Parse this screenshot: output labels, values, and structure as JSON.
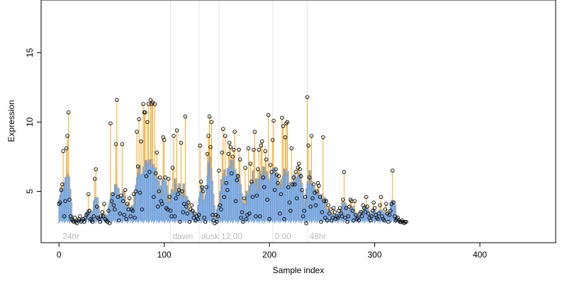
{
  "chart_data": {
    "type": "line",
    "title": "",
    "xlabel": "Sample index",
    "ylabel": "Expression",
    "xlim": [
      -17,
      472
    ],
    "ylim": [
      1.3,
      18.8
    ],
    "x_ticks": [
      0,
      100,
      200,
      300,
      400
    ],
    "y_ticks": [
      5,
      10,
      15
    ],
    "grid": false,
    "legend": "none",
    "phase_lines": [
      {
        "x": 106,
        "label": "dawn"
      },
      {
        "x": 133,
        "label": "dusk"
      },
      {
        "x": 152,
        "label": "12:00"
      },
      {
        "x": 203,
        "label": "0:00"
      },
      {
        "x": 236,
        "label": "48hr"
      }
    ],
    "corner_label": {
      "x": 2,
      "label": "24hr"
    },
    "colors": {
      "stems": "#f5a623",
      "blue_series": "#6f9fdb",
      "grey_series": "#a8a8a8",
      "points": "#000000",
      "phase_lines": "#e6e6e6",
      "phase_text": "#bdbdbd"
    },
    "series": [
      {
        "values": [
          4.1,
          4.2,
          5.1,
          5.5,
          7.9,
          3.2,
          4.3,
          8.1,
          9.0,
          10.7,
          4.4,
          3.2,
          3.0,
          2.9,
          2.8,
          3.1,
          2.8,
          2.7,
          2.9,
          3.0,
          3.2,
          2.8,
          2.9,
          3.0,
          2.8,
          3.1,
          3.3,
          3.4,
          4.8,
          3.6,
          3.0,
          2.9,
          2.8,
          3.2,
          5.9,
          6.6,
          3.9,
          3.1,
          3.0,
          2.8,
          3.2,
          3.5,
          3.2,
          4.1,
          3.0,
          2.9,
          2.8,
          3.6,
          2.7,
          9.9,
          4.3,
          4.8,
          4.0,
          3.7,
          8.4,
          11.6,
          4.6,
          2.9,
          3.4,
          4.7,
          8.4,
          4.3,
          3.3,
          5.1,
          3.0,
          4.1,
          3.7,
          4.5,
          3.2,
          3.7,
          3.6,
          4.8,
          3.1,
          5.0,
          9.3,
          6.8,
          10.2,
          4.9,
          8.6,
          3.7,
          11.3,
          10.7,
          10.7,
          6.1,
          10.0,
          11.3,
          6.4,
          11.6,
          11.3,
          11.4,
          4.6,
          11.3,
          6.3,
          7.8,
          3.9,
          5.0,
          6.0,
          4.3,
          4.1,
          8.9,
          8.7,
          6.0,
          3.8,
          3.7,
          5.9,
          4.6,
          3.6,
          3.2,
          6.7,
          9.0,
          3.2,
          4.5,
          9.4,
          4.8,
          5.1,
          2.8,
          8.5,
          5.0,
          3.5,
          4.1,
          10.4,
          3.9,
          3.4,
          4.2,
          2.8,
          3.7,
          4.0,
          3.6,
          3.1,
          3.4,
          2.9,
          3.2,
          3.0,
          3.3,
          8.3,
          5.7,
          5.3,
          5.0,
          3.1,
          2.8,
          5.3,
          7.7,
          9.0,
          10.4,
          8.2,
          10.0,
          3.3,
          2.9,
          2.7,
          3.3,
          2.8,
          3.2,
          6.5,
          4.0,
          3.7,
          7.8,
          9.5,
          4.6,
          9.0,
          5.6,
          5.1,
          7.7,
          8.5,
          8.2,
          6.3,
          7.5,
          8.0,
          9.3,
          4.3,
          5.8,
          6.1,
          8.0,
          7.3,
          3.1,
          3.5,
          2.8,
          4.5,
          6.7,
          3.0,
          3.3,
          8.1,
          3.4,
          7.0,
          5.7,
          4.6,
          8.0,
          9.3,
          3.2,
          4.7,
          6.6,
          8.0,
          3.2,
          8.3,
          8.6,
          6.0,
          5.3,
          7.9,
          7.3,
          4.4,
          10.5,
          3.0,
          6.9,
          6.4,
          8.7,
          10.1,
          5.1,
          6.6,
          6.2,
          5.6,
          6.1,
          3.4,
          4.8,
          10.3,
          9.7,
          3.0,
          8.9,
          9.9,
          10.0,
          5.3,
          4.2,
          3.6,
          8.1,
          5.5,
          6.0,
          5.5,
          6.4,
          4.5,
          6.7,
          7.0,
          6.6,
          6.1,
          5.1,
          3.2,
          3.6,
          4.6,
          2.7,
          11.8,
          8.3,
          6.0,
          3.9,
          9.0,
          4.5,
          5.5,
          4.9,
          4.0,
          5.0,
          5.6,
          5.4,
          4.6,
          2.8,
          3.5,
          8.9,
          4.3,
          3.1,
          4.3,
          2.9,
          4.0,
          3.4,
          3.7,
          2.9,
          3.1,
          3.8,
          3.5,
          3.0,
          3.2,
          3.1,
          3.6,
          3.8,
          3.4,
          3.2,
          4.4,
          6.4,
          3.1,
          3.8,
          2.8,
          3.2,
          3.9,
          4.4,
          4.3,
          3.6,
          2.9,
          4.3,
          3.3,
          3.0,
          3.1,
          2.9,
          3.4,
          3.5,
          3.2,
          4.0,
          3.8,
          3.5,
          4.6,
          3.9,
          3.4,
          3.1,
          2.9,
          3.2,
          3.6,
          4.2,
          3.8,
          3.3,
          3.1,
          3.0,
          3.4,
          4.0,
          4.6,
          3.2,
          3.0,
          2.9,
          3.7,
          4.1,
          3.4,
          2.8,
          3.3,
          3.6,
          4.1,
          6.5,
          4.2,
          3.2,
          2.9,
          3.0,
          3.1,
          2.9,
          2.8,
          2.8,
          2.9,
          2.8,
          2.7,
          2.8,
          2.8
        ]
      }
    ]
  }
}
